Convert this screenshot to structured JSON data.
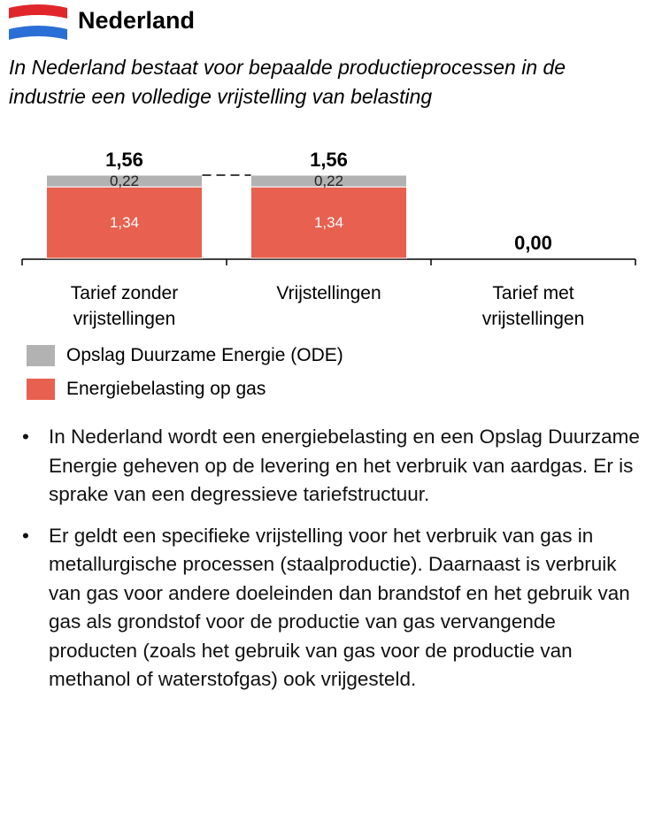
{
  "header": {
    "title": "Nederland",
    "subtitle": "In Nederland bestaat voor bepaalde productieprocessen in de industrie een volledige vrijstelling van belasting"
  },
  "chart_data": {
    "type": "waterfall",
    "categories": [
      "Tarief zonder vrijstellingen",
      "Vrijstellingen",
      "Tarief met vrijstellingen"
    ],
    "series": [
      {
        "name": "Energiebelasting op gas",
        "color": "#e8604f",
        "values": [
          1.34,
          1.34,
          null
        ],
        "value_labels": [
          "1,34",
          "1,34",
          null
        ]
      },
      {
        "name": "Opslag Duurzame Energie (ODE)",
        "color": "#b2b2b2",
        "values": [
          0.22,
          0.22,
          null
        ],
        "value_labels": [
          "0,22",
          "0,22",
          null
        ]
      }
    ],
    "totals": [
      1.56,
      1.56,
      0
    ],
    "total_labels": [
      "1,56",
      "1,56",
      "0,00"
    ]
  },
  "bullets": [
    "In Nederland wordt een energiebelasting en een Opslag Duurzame Energie geheven op de levering en het verbruik van aardgas. Er is sprake van een degressieve tariefstructuur.",
    "Er geldt een specifieke vrijstelling voor het verbruik van gas in metallurgische processen (staalproductie). Daarnaast is verbruik van gas voor andere doeleinden dan brandstof en het gebruik van gas als grondstof voor de productie van gas vervangende producten (zoals het gebruik van gas voor de productie van methanol of waterstofgas) ook vrijgesteld."
  ]
}
